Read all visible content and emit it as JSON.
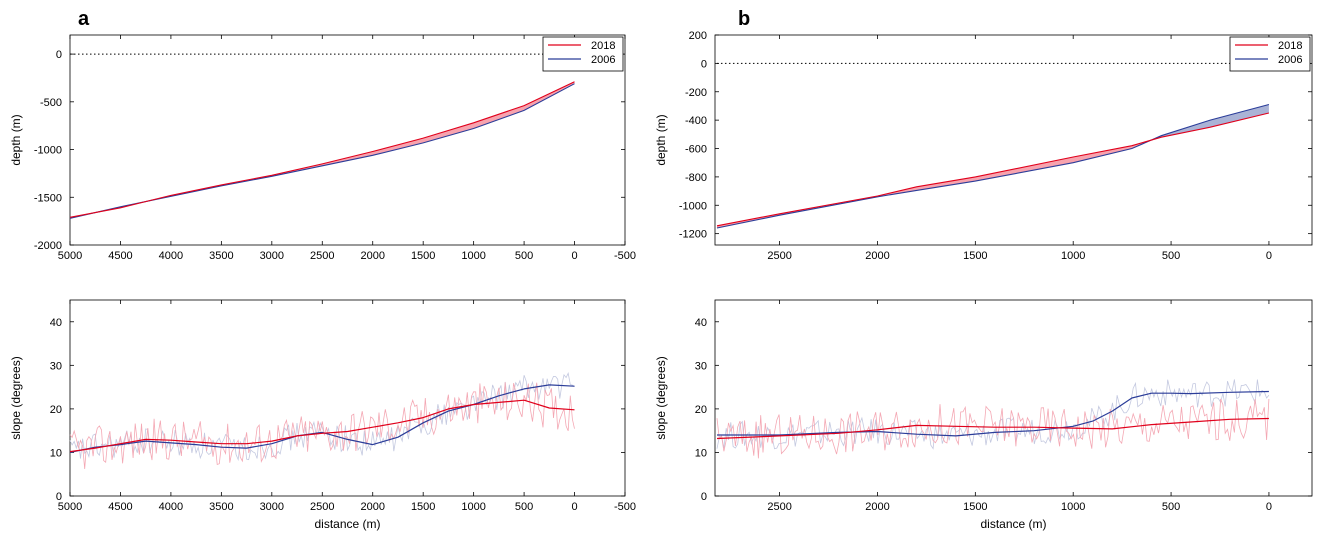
{
  "colors": {
    "red": "#e0001b",
    "blue": "#2b3d99",
    "red_fill": "#f7a3ae",
    "blue_fill": "#aab3d6",
    "red_raw": "#f4a8b4",
    "blue_raw": "#c4c9e0"
  },
  "panels": [
    {
      "label": "a"
    },
    {
      "label": "b"
    }
  ],
  "chart_data": [
    {
      "type": "line",
      "panel": "a",
      "ylabel": "depth (m)",
      "xlim": [
        5000,
        -500
      ],
      "ylim": [
        -2000,
        200
      ],
      "xticks": [
        5000,
        4500,
        4000,
        3500,
        3000,
        2500,
        2000,
        1500,
        1000,
        500,
        0,
        -500
      ],
      "xtick_labels": [
        "5000",
        "4500",
        "4000",
        "3500",
        "3000",
        "2500",
        "2000",
        "1500",
        "1000",
        "500",
        "0",
        "-500"
      ],
      "yticks": [
        -2000,
        -1500,
        -1000,
        -500,
        0
      ],
      "ytick_labels": [
        "-2000",
        "-1500",
        "-1000",
        "-500",
        "0"
      ],
      "sea_level": 0,
      "legend": {
        "position": "top-right",
        "entries": [
          "2018",
          "2006"
        ]
      },
      "series": [
        {
          "name": "2018",
          "color": "red",
          "x": [
            5000,
            4500,
            4000,
            3500,
            3000,
            2500,
            2000,
            1500,
            1000,
            500,
            0
          ],
          "y": [
            -1710,
            -1610,
            -1480,
            -1370,
            -1270,
            -1150,
            -1020,
            -880,
            -720,
            -540,
            -290
          ]
        },
        {
          "name": "2006",
          "color": "blue",
          "x": [
            5000,
            4500,
            4000,
            3500,
            3000,
            2500,
            2000,
            1500,
            1000,
            500,
            0
          ],
          "y": [
            -1720,
            -1600,
            -1490,
            -1380,
            -1280,
            -1170,
            -1060,
            -930,
            -780,
            -590,
            -310
          ]
        }
      ]
    },
    {
      "type": "line",
      "panel": "a",
      "xlabel": "distance (m)",
      "ylabel": "slope (degrees)",
      "xlim": [
        5000,
        -500
      ],
      "ylim": [
        0,
        45
      ],
      "xticks": [
        5000,
        4500,
        4000,
        3500,
        3000,
        2500,
        2000,
        1500,
        1000,
        500,
        0,
        -500
      ],
      "xtick_labels": [
        "5000",
        "4500",
        "4000",
        "3500",
        "3000",
        "2500",
        "2000",
        "1500",
        "1000",
        "500",
        "0",
        "-500"
      ],
      "yticks": [
        0,
        10,
        20,
        30,
        40
      ],
      "ytick_labels": [
        "0",
        "10",
        "20",
        "30",
        "40"
      ],
      "series": [
        {
          "name": "2018",
          "color": "red",
          "x": [
            5000,
            4750,
            4500,
            4250,
            4000,
            3750,
            3500,
            3250,
            3000,
            2750,
            2500,
            2250,
            2000,
            1750,
            1500,
            1250,
            1000,
            750,
            500,
            250,
            0
          ],
          "y": [
            10.2,
            11,
            12,
            13,
            12.8,
            12.4,
            12,
            12,
            12.6,
            13.8,
            14.4,
            14.8,
            15.8,
            16.8,
            18,
            20,
            21,
            21.5,
            22,
            20.2,
            19.8
          ]
        },
        {
          "name": "2006",
          "color": "blue",
          "x": [
            5000,
            4750,
            4500,
            4250,
            4000,
            3750,
            3500,
            3250,
            3000,
            2750,
            2500,
            2250,
            2000,
            1750,
            1500,
            1250,
            1000,
            750,
            500,
            250,
            0
          ],
          "y": [
            10,
            11.2,
            11.8,
            12.6,
            12.2,
            11.8,
            11.2,
            11,
            12,
            13.8,
            14.6,
            13,
            11.8,
            13.5,
            16.8,
            19.5,
            21,
            23,
            24.6,
            25.5,
            25.2
          ]
        }
      ]
    },
    {
      "type": "line",
      "panel": "b",
      "ylabel": "depth (m)",
      "xlim": [
        2830,
        -220
      ],
      "ylim": [
        -1280,
        200
      ],
      "xticks": [
        2500,
        2000,
        1500,
        1000,
        500,
        0
      ],
      "xtick_labels": [
        "2500",
        "2000",
        "1500",
        "1000",
        "500",
        "0"
      ],
      "yticks": [
        -1200,
        -1000,
        -800,
        -600,
        -400,
        -200,
        0,
        200
      ],
      "ytick_labels": [
        "-1200",
        "-1000",
        "-800",
        "-600",
        "-400",
        "-200",
        "0",
        "200"
      ],
      "sea_level": 0,
      "legend": {
        "position": "top-right",
        "entries": [
          "2018",
          "2006"
        ]
      },
      "series": [
        {
          "name": "2018",
          "color": "red",
          "x": [
            2820,
            2500,
            2000,
            1800,
            1500,
            1000,
            700,
            550,
            300,
            0
          ],
          "y": [
            -1145,
            -1060,
            -935,
            -870,
            -800,
            -660,
            -580,
            -520,
            -450,
            -350
          ]
        },
        {
          "name": "2006",
          "color": "blue",
          "x": [
            2820,
            2500,
            2000,
            1800,
            1500,
            1000,
            700,
            550,
            300,
            0
          ],
          "y": [
            -1160,
            -1070,
            -940,
            -895,
            -830,
            -700,
            -600,
            -510,
            -400,
            -290
          ]
        }
      ]
    },
    {
      "type": "line",
      "panel": "b",
      "xlabel": "distance (m)",
      "ylabel": "slope (degrees)",
      "xlim": [
        2830,
        -220
      ],
      "ylim": [
        0,
        45
      ],
      "xticks": [
        2500,
        2000,
        1500,
        1000,
        500,
        0
      ],
      "xtick_labels": [
        "2500",
        "2000",
        "1500",
        "1000",
        "500",
        "0"
      ],
      "yticks": [
        0,
        10,
        20,
        30,
        40
      ],
      "ytick_labels": [
        "0",
        "10",
        "20",
        "30",
        "40"
      ],
      "series": [
        {
          "name": "2018",
          "color": "red",
          "x": [
            2820,
            2500,
            2200,
            2000,
            1800,
            1600,
            1400,
            1200,
            1000,
            800,
            600,
            400,
            200,
            0
          ],
          "y": [
            13.2,
            13.8,
            14.4,
            15.2,
            16.2,
            16,
            15.8,
            15.8,
            15.6,
            15.4,
            16.4,
            17,
            17.6,
            17.8
          ]
        },
        {
          "name": "2006",
          "color": "blue",
          "x": [
            2820,
            2500,
            2200,
            2000,
            1800,
            1600,
            1400,
            1200,
            1000,
            900,
            800,
            700,
            600,
            500,
            400,
            200,
            0
          ],
          "y": [
            14,
            14,
            14.6,
            14.8,
            14.2,
            13.8,
            14.6,
            15,
            16,
            17.2,
            19.5,
            22.5,
            23.6,
            23.6,
            23.5,
            23.8,
            24
          ]
        }
      ]
    }
  ]
}
